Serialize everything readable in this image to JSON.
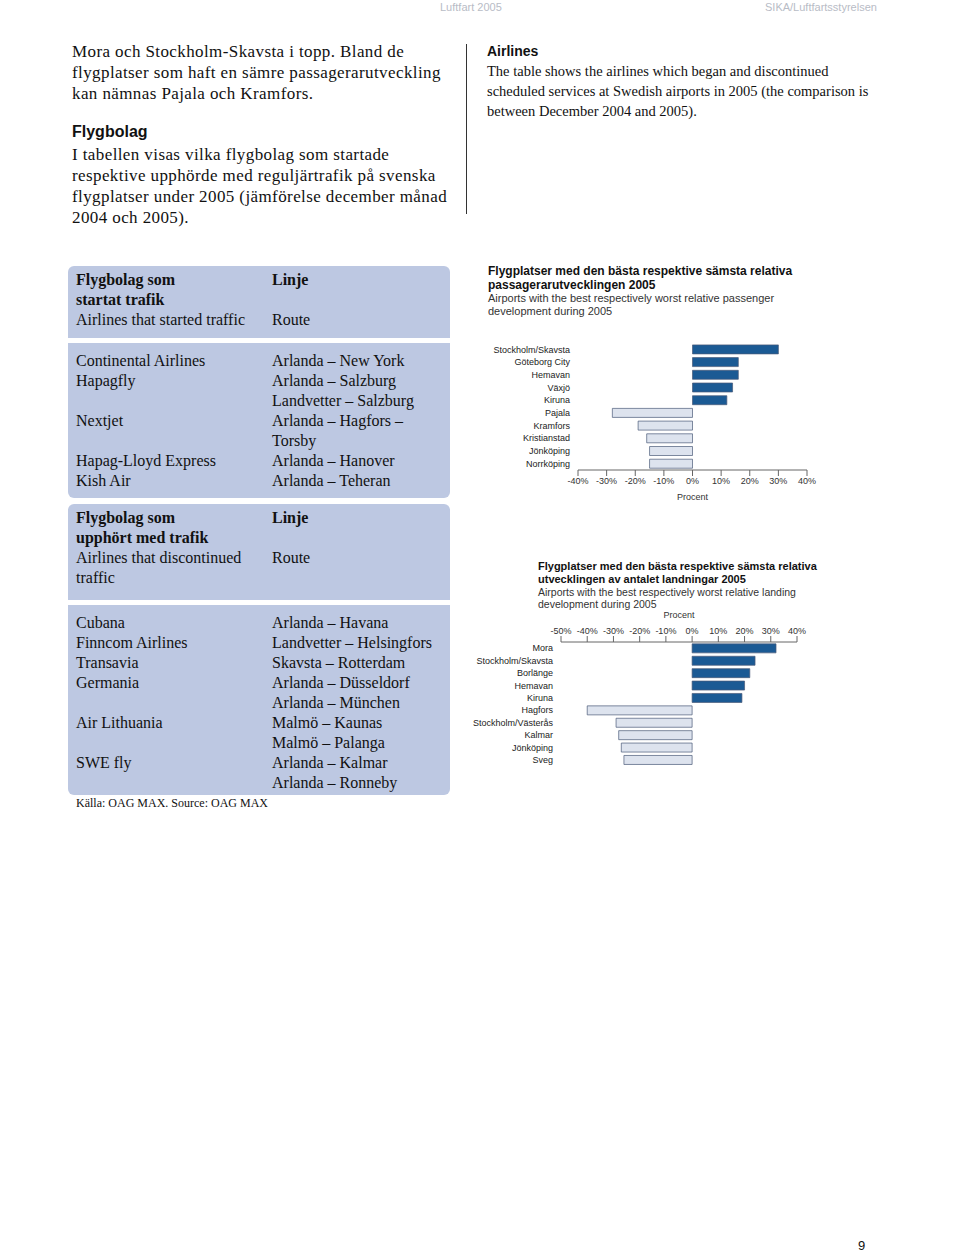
{
  "header": {
    "left": "Luftfart 2005",
    "right": "SIKA/Luftfartsstyrelsen"
  },
  "text": {
    "sv_intro": "Mora och Stockholm-Skavsta i topp. Bland de flygplatser som haft en sämre passagerarutveckling kan nämnas Pajala och Kramfors.",
    "sv_heading": "Flygbolag",
    "sv_body": "I tabellen visas vilka flygbolag som startade respektive upphörde med reguljärtrafik på svenska flygplatser under 2005 (jämförelse december månad 2004 och 2005).",
    "en_heading": "Airlines",
    "en_body": "The table shows the airlines which began and discontinued scheduled services at Swedish airports in 2005 (the comparison is between December 2004 and 2005)."
  },
  "tables": [
    {
      "header": {
        "col1_sv": [
          "Flygbolag som",
          "startat trafik"
        ],
        "col1_en": [
          "Airlines that started traffic"
        ],
        "col2_sv": "Linje",
        "col2_en": "Route"
      },
      "rows": [
        {
          "airline": "Continental Airlines",
          "routes": [
            "Arlanda – New York"
          ]
        },
        {
          "airline": "Hapagfly",
          "routes": [
            "Arlanda – Salzburg",
            "Landvetter – Salzburg"
          ]
        },
        {
          "airline": "Nextjet",
          "routes": [
            "Arlanda – Hagfors –",
            "Torsby"
          ]
        },
        {
          "airline": "Hapag-Lloyd Express",
          "routes": [
            "Arlanda – Hanover"
          ]
        },
        {
          "airline": "Kish Air",
          "routes": [
            "Arlanda – Teheran"
          ]
        }
      ]
    },
    {
      "header": {
        "col1_sv": [
          "Flygbolag som",
          "upphört med trafik"
        ],
        "col1_en": [
          "Airlines that discontinued",
          "traffic"
        ],
        "col2_sv": "Linje",
        "col2_en": "Route"
      },
      "rows": [
        {
          "airline": "Cubana",
          "routes": [
            "Arlanda – Havana"
          ]
        },
        {
          "airline": "Finncom Airlines",
          "routes": [
            "Landvetter – Helsingfors"
          ]
        },
        {
          "airline": "Transavia",
          "routes": [
            "Skavsta – Rotterdam"
          ]
        },
        {
          "airline": "Germania",
          "routes": [
            "Arlanda – Düsseldorf",
            "Arlanda – München"
          ]
        },
        {
          "airline": "Air Lithuania",
          "routes": [
            "Malmö – Kaunas",
            "Malmö – Palanga"
          ]
        },
        {
          "airline": "SWE fly",
          "routes": [
            "Arlanda – Kalmar",
            "Arlanda – Ronneby"
          ]
        }
      ]
    }
  ],
  "source": "Källa: OAG MAX. Source: OAG MAX",
  "page_number": "9",
  "chart_data": [
    {
      "type": "bar",
      "orientation": "horizontal",
      "title": "Flygplatser med den bästa respektive sämsta relativa passagerarutvecklingen 2005",
      "subtitle": "Airports with the best respectively worst relative passenger development during 2005",
      "categories": [
        "Stockholm/Skavsta",
        "Göteborg City",
        "Hemavan",
        "Växjö",
        "Kiruna",
        "Pajala",
        "Kramfors",
        "Kristianstad",
        "Jönköping",
        "Norrköping"
      ],
      "values": [
        30,
        16,
        16,
        14,
        12,
        -28,
        -19,
        -16,
        -15,
        -15
      ],
      "colors": [
        "#1b5a94",
        "#1b5a94",
        "#1b5a94",
        "#1b5a94",
        "#1b5a94",
        "#dde3ee",
        "#dde3ee",
        "#dde3ee",
        "#dde3ee",
        "#dde3ee"
      ],
      "xlabel": "Procent",
      "xlim": [
        -40,
        40
      ],
      "xticks": [
        {
          "value": -40,
          "label": "-40%"
        },
        {
          "value": -30,
          "label": "-30%"
        },
        {
          "value": -20,
          "label": "-20%"
        },
        {
          "value": -10,
          "label": "-10%"
        },
        {
          "value": 0,
          "label": "0%"
        },
        {
          "value": 10,
          "label": "10%"
        },
        {
          "value": 20,
          "label": "20%"
        },
        {
          "value": 30,
          "label": "30%"
        },
        {
          "value": 40,
          "label": "40%"
        }
      ]
    },
    {
      "type": "bar",
      "orientation": "horizontal",
      "title": "Flygplatser med den bästa respektive sämsta relativa utvecklingen av antalet landningar 2005",
      "subtitle": "Airports with the best respectively worst relative landing development during 2005",
      "categories": [
        "Mora",
        "Stockholm/Skavsta",
        "Borlänge",
        "Hemavan",
        "Kiruna",
        "Hagfors",
        "Stockholm/Västerås",
        "Kalmar",
        "Jönköping",
        "Sveg"
      ],
      "values": [
        32,
        24,
        22,
        20,
        19,
        -40,
        -29,
        -28,
        -27,
        -26
      ],
      "colors": [
        "#1b5a94",
        "#1b5a94",
        "#1b5a94",
        "#1b5a94",
        "#1b5a94",
        "#dde3ee",
        "#dde3ee",
        "#dde3ee",
        "#dde3ee",
        "#dde3ee"
      ],
      "xlabel": "Procent",
      "xlim": [
        -50,
        40
      ],
      "xticks": [
        {
          "value": -50,
          "label": "-50%"
        },
        {
          "value": -40,
          "label": "-40%"
        },
        {
          "value": -30,
          "label": "-30%"
        },
        {
          "value": -20,
          "label": "-20%"
        },
        {
          "value": -10,
          "label": "-10%"
        },
        {
          "value": 0,
          "label": "0%"
        },
        {
          "value": 10,
          "label": "10%"
        },
        {
          "value": 20,
          "label": "20%"
        },
        {
          "value": 30,
          "label": "30%"
        },
        {
          "value": 40,
          "label": "40%"
        }
      ]
    }
  ]
}
